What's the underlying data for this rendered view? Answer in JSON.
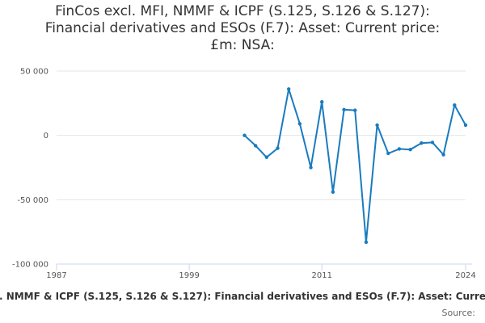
{
  "chart_data": {
    "type": "line",
    "title": "FinCos excl. MFI, NMMF & ICPF (S.125, S.126 & S.127):\nFinancial derivatives and ESOs (F.7): Asset: Current price:\n£m: NSA:",
    "xlabel": "",
    "ylabel": "",
    "xlim": [
      1987,
      2024
    ],
    "ylim": [
      -100000,
      50000
    ],
    "x_ticks": [
      "1987",
      "1999",
      "2011",
      "2024"
    ],
    "y_ticks": [
      {
        "value": 50000,
        "label": "50 000"
      },
      {
        "value": 0,
        "label": "0"
      },
      {
        "value": -50000,
        "label": "-50 000"
      },
      {
        "value": -100000,
        "label": "-100 000"
      }
    ],
    "grid": true,
    "legend_position": "bottom",
    "series": [
      {
        "name": "FinCos excl. MFI, NMMF & ICPF (S.125, S.126 & S.127): Financial derivatives and ESOs (F.7): Asset: Current price: £m: NSA:",
        "color": "#1a7bbf",
        "points": [
          {
            "x": 2004,
            "y": 0
          },
          {
            "x": 2005,
            "y": -8000
          },
          {
            "x": 2006,
            "y": -17000
          },
          {
            "x": 2007,
            "y": -10000
          },
          {
            "x": 2008,
            "y": 36000
          },
          {
            "x": 2009,
            "y": 9000
          },
          {
            "x": 2010,
            "y": -25000
          },
          {
            "x": 2011,
            "y": 26000
          },
          {
            "x": 2012,
            "y": -44000
          },
          {
            "x": 2013,
            "y": 20000
          },
          {
            "x": 2014,
            "y": 19500
          },
          {
            "x": 2015,
            "y": -83000
          },
          {
            "x": 2016,
            "y": 8000
          },
          {
            "x": 2017,
            "y": -14000
          },
          {
            "x": 2018,
            "y": -10500
          },
          {
            "x": 2019,
            "y": -11000
          },
          {
            "x": 2020,
            "y": -6000
          },
          {
            "x": 2021,
            "y": -5500
          },
          {
            "x": 2022,
            "y": -15000
          },
          {
            "x": 2023,
            "y": 23500
          },
          {
            "x": 2024,
            "y": 8000
          }
        ]
      }
    ],
    "legend_label": ". NMMF & ICPF (S.125, S.126 & S.127): Financial derivatives and ESOs (F.7): Asset: Curre",
    "source_label": "Source: "
  }
}
